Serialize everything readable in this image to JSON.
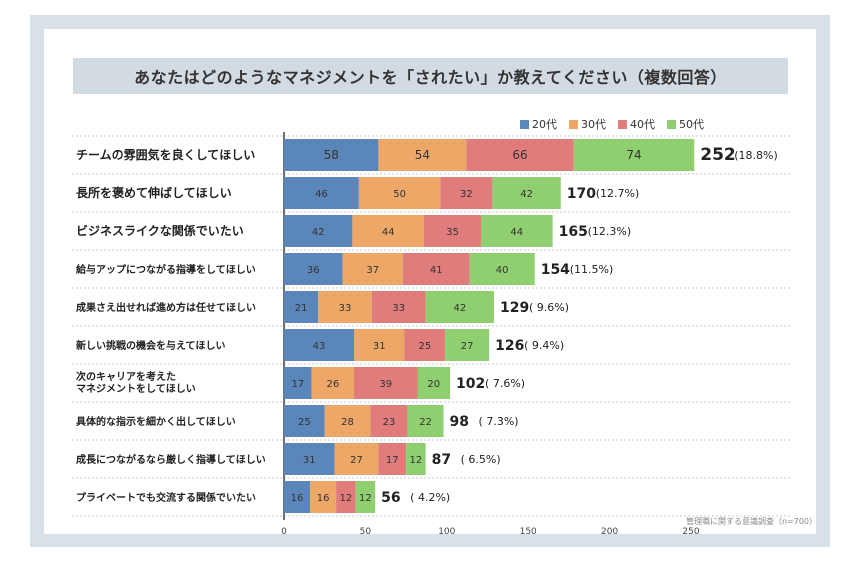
{
  "title": "あなたはどのようなマネジメントを「されたい」か教えてください（複数回答）",
  "source_note": "管理職に関する意識調査（n=700）",
  "colors": {
    "20代": "#5b86b9",
    "30代": "#eda868",
    "40代": "#e07c7c",
    "50代": "#8fcf70"
  },
  "chart_data": {
    "type": "bar",
    "orientation": "horizontal",
    "stacked": true,
    "title": "あなたはどのようなマネジメントを「されたい」か教えてください（複数回答）",
    "categories": [
      "チームの雰囲気を良くしてほしい",
      "長所を褒めて伸ばしてほしい",
      "ビジネスライクな関係でいたい",
      "給与アップにつながる指導をしてほしい",
      "成果さえ出せれば進め方は任せてほしい",
      "新しい挑戦の機会を与えてほしい",
      "次のキャリアを考えた\nマネジメントをしてほしい",
      "具体的な指示を細かく出してほしい",
      "成長につながるなら厳しく指導してほしい",
      "プライベートでも交流する関係でいたい"
    ],
    "series": [
      {
        "name": "20代",
        "values": [
          58,
          46,
          42,
          36,
          21,
          43,
          17,
          25,
          31,
          16
        ]
      },
      {
        "name": "30代",
        "values": [
          54,
          50,
          44,
          37,
          33,
          31,
          26,
          28,
          27,
          16
        ]
      },
      {
        "name": "40代",
        "values": [
          66,
          32,
          35,
          41,
          33,
          25,
          39,
          23,
          17,
          12
        ]
      },
      {
        "name": "50代",
        "values": [
          74,
          42,
          44,
          40,
          42,
          27,
          20,
          22,
          12,
          12
        ]
      }
    ],
    "totals": [
      252,
      170,
      165,
      154,
      129,
      126,
      102,
      98,
      87,
      56
    ],
    "percentages": [
      "(18.8%)",
      "(12.7%)",
      "(12.3%)",
      "(11.5%)",
      "( 9.6%)",
      "( 9.4%)",
      "( 7.6%)",
      "( 7.3%)",
      "( 6.5%)",
      "( 4.2%)"
    ],
    "xlim": [
      0,
      250
    ],
    "xticks": [
      0,
      50,
      100,
      150,
      200,
      250
    ],
    "legend": "top-right",
    "grid": false
  }
}
